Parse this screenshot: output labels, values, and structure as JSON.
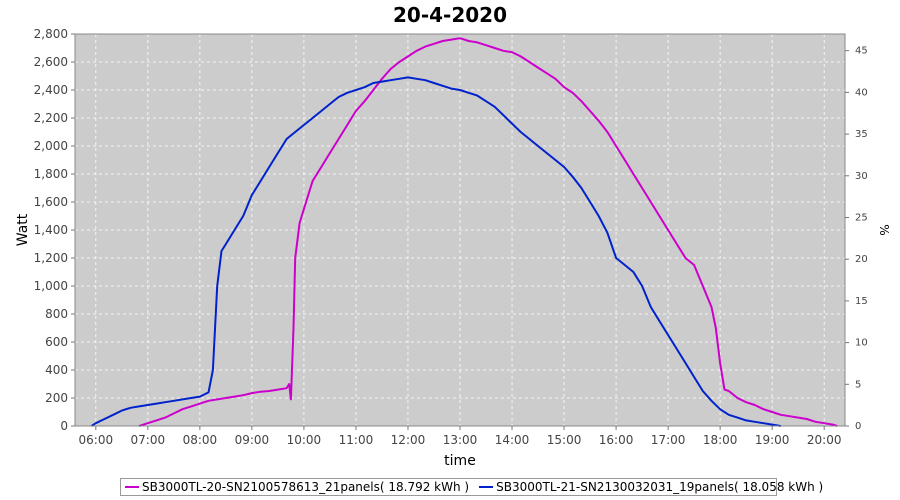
{
  "chart_data": {
    "type": "line",
    "title": "20-4-2020",
    "xlabel": "time",
    "ylabel": "Watt",
    "y2label": "%",
    "ylim": [
      0,
      2800
    ],
    "y2lim": [
      0,
      47
    ],
    "grid": true,
    "legend_position": "bottom",
    "x_ticks": [
      "06:00",
      "07:00",
      "08:00",
      "09:00",
      "10:00",
      "11:00",
      "12:00",
      "13:00",
      "14:00",
      "15:00",
      "16:00",
      "17:00",
      "18:00",
      "19:00",
      "20:00"
    ],
    "y_ticks": [
      "0",
      "200",
      "400",
      "600",
      "800",
      "1,000",
      "1,200",
      "1,400",
      "1,600",
      "1,800",
      "2,000",
      "2,200",
      "2,400",
      "2,600",
      "2,800"
    ],
    "y2_ticks": [
      "0",
      "5",
      "10",
      "15",
      "20",
      "25",
      "30",
      "35",
      "40",
      "45"
    ],
    "series": [
      {
        "name": "SB3000TL-20-SN2100578613_21panels( 18.792 kWh )",
        "color": "#cc00cc",
        "x": [
          "06:50",
          "07:00",
          "07:10",
          "07:20",
          "07:30",
          "07:40",
          "07:50",
          "08:00",
          "08:10",
          "08:20",
          "08:30",
          "08:40",
          "08:50",
          "09:00",
          "09:10",
          "09:20",
          "09:30",
          "09:40",
          "09:43",
          "09:45",
          "09:48",
          "09:50",
          "09:55",
          "10:00",
          "10:10",
          "10:20",
          "10:30",
          "10:40",
          "10:50",
          "11:00",
          "11:10",
          "11:20",
          "11:30",
          "11:40",
          "11:50",
          "12:00",
          "12:10",
          "12:20",
          "12:30",
          "12:40",
          "12:50",
          "13:00",
          "13:10",
          "13:20",
          "13:30",
          "13:40",
          "13:50",
          "14:00",
          "14:10",
          "14:20",
          "14:30",
          "14:40",
          "14:50",
          "15:00",
          "15:10",
          "15:20",
          "15:30",
          "15:40",
          "15:50",
          "16:00",
          "16:10",
          "16:20",
          "16:30",
          "16:40",
          "16:50",
          "17:00",
          "17:10",
          "17:20",
          "17:30",
          "17:40",
          "17:50",
          "17:55",
          "18:00",
          "18:05",
          "18:10",
          "18:20",
          "18:30",
          "18:40",
          "18:50",
          "19:00",
          "19:10",
          "19:20",
          "19:30",
          "19:40",
          "19:50",
          "20:00",
          "20:10",
          "20:15"
        ],
        "values": [
          0,
          20,
          40,
          60,
          90,
          120,
          140,
          160,
          180,
          190,
          200,
          210,
          220,
          235,
          245,
          250,
          260,
          270,
          300,
          190,
          700,
          1200,
          1450,
          1550,
          1750,
          1850,
          1950,
          2050,
          2150,
          2250,
          2320,
          2400,
          2480,
          2550,
          2600,
          2640,
          2680,
          2710,
          2730,
          2750,
          2760,
          2770,
          2750,
          2740,
          2720,
          2700,
          2680,
          2670,
          2640,
          2600,
          2560,
          2520,
          2480,
          2420,
          2380,
          2320,
          2250,
          2180,
          2100,
          2000,
          1900,
          1800,
          1700,
          1600,
          1500,
          1400,
          1300,
          1200,
          1150,
          1000,
          850,
          700,
          450,
          260,
          250,
          200,
          170,
          150,
          120,
          100,
          80,
          70,
          60,
          50,
          30,
          20,
          10,
          0
        ]
      },
      {
        "name": "SB3000TL-21-SN2130032031_19panels( 18.058 kWh )",
        "color": "#0022cc",
        "x": [
          "05:55",
          "06:00",
          "06:10",
          "06:20",
          "06:30",
          "06:40",
          "06:50",
          "07:00",
          "07:10",
          "07:20",
          "07:30",
          "07:40",
          "07:50",
          "08:00",
          "08:10",
          "08:15",
          "08:20",
          "08:25",
          "08:30",
          "08:40",
          "08:50",
          "09:00",
          "09:10",
          "09:20",
          "09:30",
          "09:40",
          "09:50",
          "10:00",
          "10:10",
          "10:20",
          "10:30",
          "10:40",
          "10:50",
          "11:00",
          "11:10",
          "11:20",
          "11:30",
          "11:40",
          "11:50",
          "12:00",
          "12:10",
          "12:20",
          "12:30",
          "12:40",
          "12:50",
          "13:00",
          "13:10",
          "13:20",
          "13:30",
          "13:40",
          "13:50",
          "14:00",
          "14:10",
          "14:20",
          "14:30",
          "14:40",
          "14:50",
          "15:00",
          "15:10",
          "15:20",
          "15:30",
          "15:40",
          "15:50",
          "16:00",
          "16:10",
          "16:20",
          "16:30",
          "16:40",
          "16:50",
          "17:00",
          "17:10",
          "17:20",
          "17:30",
          "17:40",
          "17:50",
          "18:00",
          "18:10",
          "18:20",
          "18:30",
          "18:40",
          "18:50",
          "19:00",
          "19:10"
        ],
        "values": [
          0,
          20,
          50,
          80,
          110,
          130,
          140,
          150,
          160,
          170,
          180,
          190,
          200,
          210,
          240,
          400,
          1000,
          1250,
          1300,
          1400,
          1500,
          1650,
          1750,
          1850,
          1950,
          2050,
          2100,
          2150,
          2200,
          2250,
          2300,
          2350,
          2380,
          2400,
          2420,
          2450,
          2460,
          2470,
          2480,
          2490,
          2480,
          2470,
          2450,
          2430,
          2410,
          2400,
          2380,
          2360,
          2320,
          2280,
          2220,
          2160,
          2100,
          2050,
          2000,
          1950,
          1900,
          1850,
          1780,
          1700,
          1600,
          1500,
          1380,
          1200,
          1150,
          1100,
          1000,
          850,
          750,
          650,
          550,
          450,
          350,
          250,
          180,
          120,
          80,
          60,
          40,
          30,
          20,
          10,
          0
        ]
      }
    ]
  }
}
